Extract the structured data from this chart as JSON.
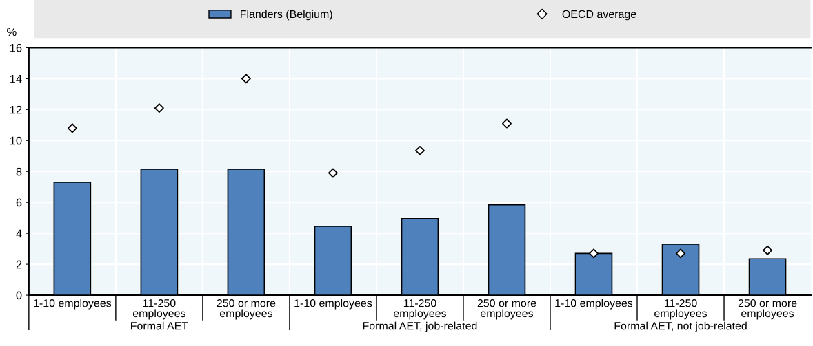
{
  "chart_data": {
    "type": "bar",
    "ylabel": "%",
    "categories": [
      "1-10 employees",
      "11-250\nemployees",
      "250 or more\nemployees",
      "1-10 employees",
      "11-250\nemployees",
      "250 or more\nemployees",
      "1-10 employees",
      "11-250\nemployees",
      "250 or more\nemployees"
    ],
    "series": [
      {
        "name": "Flanders (Belgium)",
        "color": "#4f81bd",
        "values": [
          7.3,
          8.15,
          8.15,
          4.45,
          4.95,
          5.85,
          2.7,
          3.3,
          2.35
        ]
      },
      {
        "name": "OECD average",
        "type": "scatter",
        "color": "#ffffff",
        "marker": "diamond",
        "values": [
          10.8,
          12.1,
          14.0,
          7.9,
          9.35,
          11.1,
          2.7,
          2.7,
          2.9
        ]
      }
    ],
    "annotations": [
      "Formal AET",
      "Formal AET, job-related",
      "Formal AET, not job-related"
    ],
    "ylim": [
      0,
      16
    ],
    "yticks": [
      0,
      2,
      4,
      6,
      8,
      10,
      12,
      14,
      16
    ],
    "grid": true,
    "legend": "top"
  }
}
